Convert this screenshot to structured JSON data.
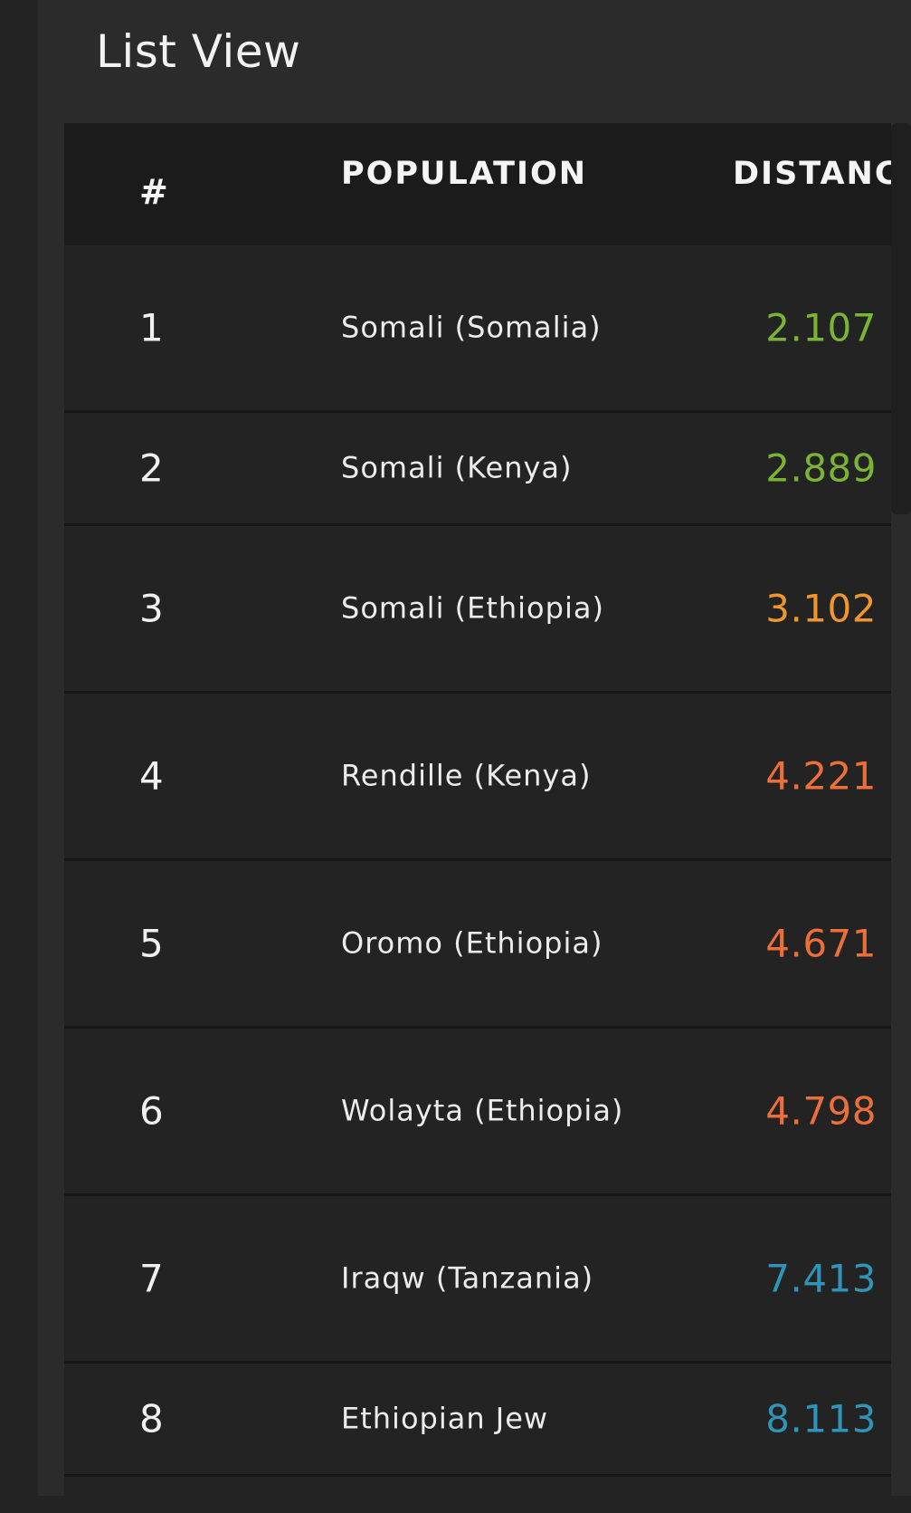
{
  "page": {
    "title": "List View"
  },
  "table": {
    "headers": {
      "rank": "#",
      "population": "POPULATION",
      "distance": "DISTANC"
    },
    "rows": [
      {
        "rank": "1",
        "population": "Somali (Somalia)",
        "distance": "2.107",
        "color": "#7ab435"
      },
      {
        "rank": "2",
        "population": "Somali (Kenya)",
        "distance": "2.889",
        "color": "#7ab435"
      },
      {
        "rank": "3",
        "population": "Somali (Ethiopia)",
        "distance": "3.102",
        "color": "#f0962d"
      },
      {
        "rank": "4",
        "population": "Rendille (Kenya)",
        "distance": "4.221",
        "color": "#ec6f3a"
      },
      {
        "rank": "5",
        "population": "Oromo (Ethiopia)",
        "distance": "4.671",
        "color": "#ec6f3a"
      },
      {
        "rank": "6",
        "population": "Wolayta (Ethiopia)",
        "distance": "4.798",
        "color": "#ec6f3a"
      },
      {
        "rank": "7",
        "population": "Iraqw (Tanzania)",
        "distance": "7.413",
        "color": "#2f94b8"
      },
      {
        "rank": "8",
        "population": "Ethiopian Jew",
        "distance": "8.113",
        "color": "#2f94b8"
      }
    ]
  }
}
